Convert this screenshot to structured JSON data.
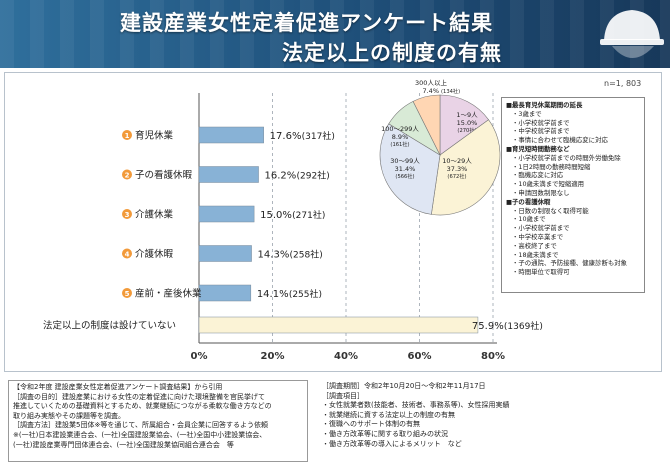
{
  "header": {
    "title_line1": "建設産業女性定着促進アンケート結果",
    "title_line2": "法定以上の制度の有無"
  },
  "colors": {
    "bar_fill": "#88b2d6",
    "bar_fill_last": "#fbf3d6",
    "badge": "#f29a3a",
    "axis": "#888888",
    "pie": [
      "#e9d3e6",
      "#fbf3d6",
      "#dfe6f3",
      "#d8ead6",
      "#ffd6b3"
    ]
  },
  "chart_data": [
    {
      "type": "bar",
      "orientation": "horizontal",
      "categories": [
        "育児休業",
        "子の看護休暇",
        "介護休業",
        "介護休暇",
        "産前・産後休業",
        "法定以上の制度は設けていない"
      ],
      "badges": [
        "1",
        "2",
        "3",
        "4",
        "5",
        ""
      ],
      "values": [
        17.6,
        16.2,
        15.0,
        14.3,
        14.1,
        75.9
      ],
      "value_labels": [
        "17.6%",
        "16.2%",
        "15.0%",
        "14.3%",
        "14.1%",
        "75.9%"
      ],
      "count_labels": [
        "(317社)",
        "(292社)",
        "(271社)",
        "(258社)",
        "(255社)",
        "(1369社)"
      ],
      "xlim": [
        0,
        80
      ],
      "x_ticks": [
        "0%",
        "20%",
        "40%",
        "60%",
        "80%"
      ],
      "grid": "vertical dashed"
    },
    {
      "type": "pie",
      "slices": [
        {
          "label": "1〜9人",
          "percent": "15.0%",
          "count": "(270社)",
          "value": 15.0
        },
        {
          "label": "10〜29人",
          "percent": "37.3%",
          "count": "(672社)",
          "value": 37.3
        },
        {
          "label": "30〜99人",
          "percent": "31.4%",
          "count": "(566社)",
          "value": 31.4
        },
        {
          "label": "100〜299人",
          "percent": "8.9%",
          "count": "(161社)",
          "value": 8.9
        },
        {
          "label": "300人以上",
          "percent": "7.4%",
          "count": "(134社)",
          "value": 7.4
        }
      ],
      "total_label": "n=1, 803"
    }
  ],
  "notes": {
    "sections": [
      {
        "heading": "■最長育児休業期間の延長",
        "items": [
          "・3歳まで",
          "・小学校就学前まで",
          "・中学校就学前まで",
          "・事情に合わせて臨機応変に対応"
        ]
      },
      {
        "heading": "■育児短時間勤務など",
        "items": [
          "・小学校就学前までの時間外労働免除",
          "・1日2時間の勤務時間短縮",
          "・臨機応変に対応",
          "・10歳未満まで短縮適用",
          "・申請回数制限なし"
        ]
      },
      {
        "heading": "■子の看護休暇",
        "items": [
          "・日数の制限なく取得可能",
          "・10歳まで",
          "・小学校就学前まで",
          "・中学校卒業まで",
          "・高校終了まで",
          "・18歳未満まで",
          "・子の通院、予防接種、健康診断も対象",
          "・時間単位で取得可"
        ]
      }
    ]
  },
  "footer_left": [
    "【令和2年度 建設産業女性定着促進アンケート調査結果】から引用",
    "［調査の目的］建設産業における女性の定着促進に向けた環境整備を官民挙げて",
    "推進していくための基礎資料とするため、就業継続につながる柔軟な働き方などの",
    "取り組み実態やその課題等を調査。",
    "［調査方法］建設業5団体※等を通じて、所属組合・会員企業に回答するよう依頼",
    "※(一社)日本建設業連合会、(一社)全国建設業協会、(一社)全国中小建設業協会、",
    "(一社)建設産業専門団体連合会、(一社)全国建設業協同組合連合会　等"
  ],
  "footer_right": [
    "［調査期間］令和2年10月20日～令和2年11月17日",
    "［調査項目］",
    "・女性就業者数(技能者、技術者、事務系等)、女性採用実績",
    "・就業継続に資する法定以上の制度の有無",
    "・復職へのサポート体制の有無",
    "・働き方改革等に関する取り組みの状況",
    "・働き方改革等の導入によるメリット　など"
  ]
}
